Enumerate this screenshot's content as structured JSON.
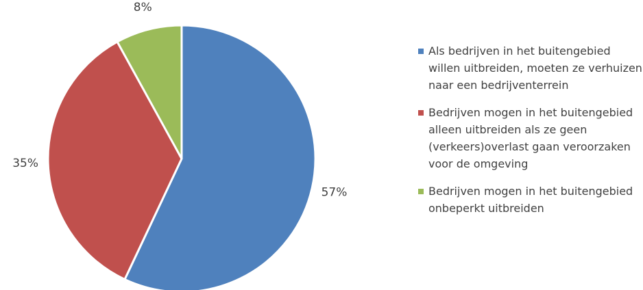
{
  "chart_data": {
    "type": "pie",
    "series": [
      {
        "name": "Als bedrijven in het buitengebied willen uitbreiden, moeten ze verhuizen naar een bedrijventerrein",
        "color": "#4f81bd"
      },
      {
        "name": "Bedrijven mogen in het buitengebied alleen uitbreiden als ze geen (verkeers)overlast gaan veroorzaken voor de omgeving",
        "color": "#c0504d"
      },
      {
        "name": "Bedrijven mogen in het buitengebied onbeperkt uitbreiden",
        "color": "#9bbb59"
      }
    ],
    "values": [
      57,
      35,
      8
    ],
    "value_labels": [
      "57%",
      "35%",
      "8%"
    ],
    "legend": "right"
  }
}
